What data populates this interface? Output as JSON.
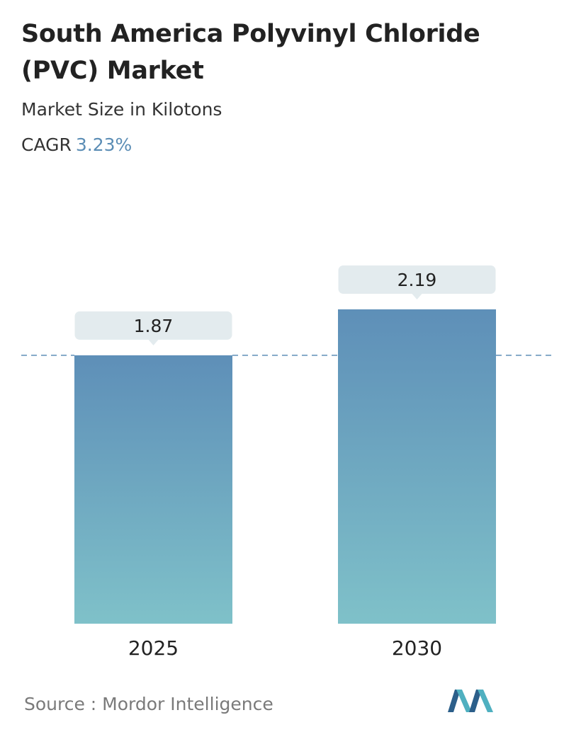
{
  "title": "South America Polyvinyl Chloride (PVC) Market",
  "subtitle": "Market Size in Kilotons",
  "cagr_label": "CAGR",
  "cagr_value": "3.23%",
  "source": "Source :  Mordor Intelligence",
  "colors": {
    "bar_top": "#5e8fb8",
    "bar_bottom": "#7fc1c9",
    "callout": "#e3ebee",
    "dashed_line": "#5e8fb8",
    "cagr_value": "#5b8db5"
  },
  "logo_icon": "mordor-intelligence-logo-icon",
  "chart_data": {
    "type": "bar",
    "title": "South America Polyvinyl Chloride (PVC) Market",
    "ylabel": "",
    "xlabel": "",
    "categories": [
      "2025",
      "2030"
    ],
    "values": [
      1.87,
      2.19
    ],
    "value_labels": [
      "1.87",
      "2.19"
    ],
    "reference_line": 1.87,
    "grid": false
  }
}
